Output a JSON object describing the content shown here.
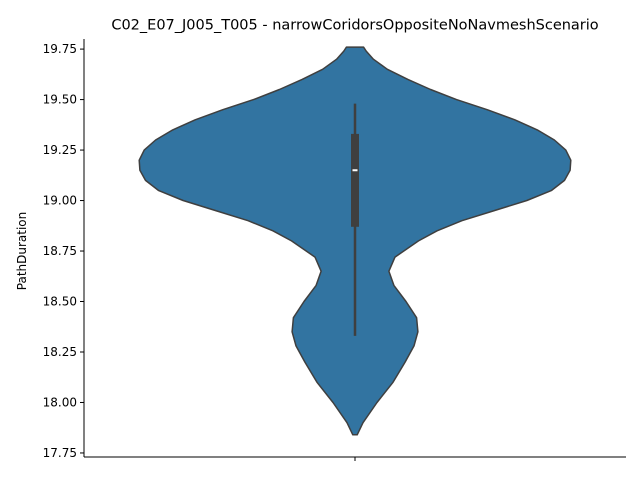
{
  "chart_data": {
    "type": "violin",
    "title": "C02_E07_J005_T005 - narrowCoridorsOppositeNoNavmeshScenario",
    "xlabel": "",
    "ylabel": "PathDuration",
    "ylim": [
      17.73,
      19.8
    ],
    "yticks": [
      17.75,
      18.0,
      18.25,
      18.5,
      18.75,
      19.0,
      19.25,
      19.5,
      19.75
    ],
    "ytick_labels": [
      "17.75",
      "18.00",
      "18.25",
      "18.50",
      "18.75",
      "19.00",
      "19.25",
      "19.50",
      "19.75"
    ],
    "grid": false,
    "color": "#3274a1",
    "edge_color": "#3f3f3f",
    "box_color": "#3f3f3f",
    "median_color": "#ffffff",
    "violin": {
      "min": 17.84,
      "max": 19.76,
      "half_width_relative": [
        [
          17.84,
          0.01
        ],
        [
          17.9,
          0.037
        ],
        [
          18.0,
          0.102
        ],
        [
          18.1,
          0.176
        ],
        [
          18.2,
          0.232
        ],
        [
          18.28,
          0.273
        ],
        [
          18.35,
          0.291
        ],
        [
          18.42,
          0.285
        ],
        [
          18.5,
          0.236
        ],
        [
          18.58,
          0.18
        ],
        [
          18.65,
          0.157
        ],
        [
          18.72,
          0.185
        ],
        [
          18.8,
          0.294
        ],
        [
          18.85,
          0.38
        ],
        [
          18.9,
          0.495
        ],
        [
          18.95,
          0.645
        ],
        [
          19.0,
          0.796
        ],
        [
          19.05,
          0.91
        ],
        [
          19.1,
          0.97
        ],
        [
          19.15,
          0.996
        ],
        [
          19.2,
          0.999
        ],
        [
          19.25,
          0.976
        ],
        [
          19.3,
          0.923
        ],
        [
          19.35,
          0.844
        ],
        [
          19.4,
          0.74
        ],
        [
          19.45,
          0.612
        ],
        [
          19.5,
          0.47
        ],
        [
          19.55,
          0.35
        ],
        [
          19.6,
          0.245
        ],
        [
          19.65,
          0.15
        ],
        [
          19.7,
          0.085
        ],
        [
          19.74,
          0.052
        ],
        [
          19.76,
          0.04
        ]
      ]
    },
    "box": {
      "whisker_low": 18.33,
      "q1": 18.87,
      "median": 19.15,
      "q3": 19.33,
      "whisker_high": 19.48
    }
  }
}
